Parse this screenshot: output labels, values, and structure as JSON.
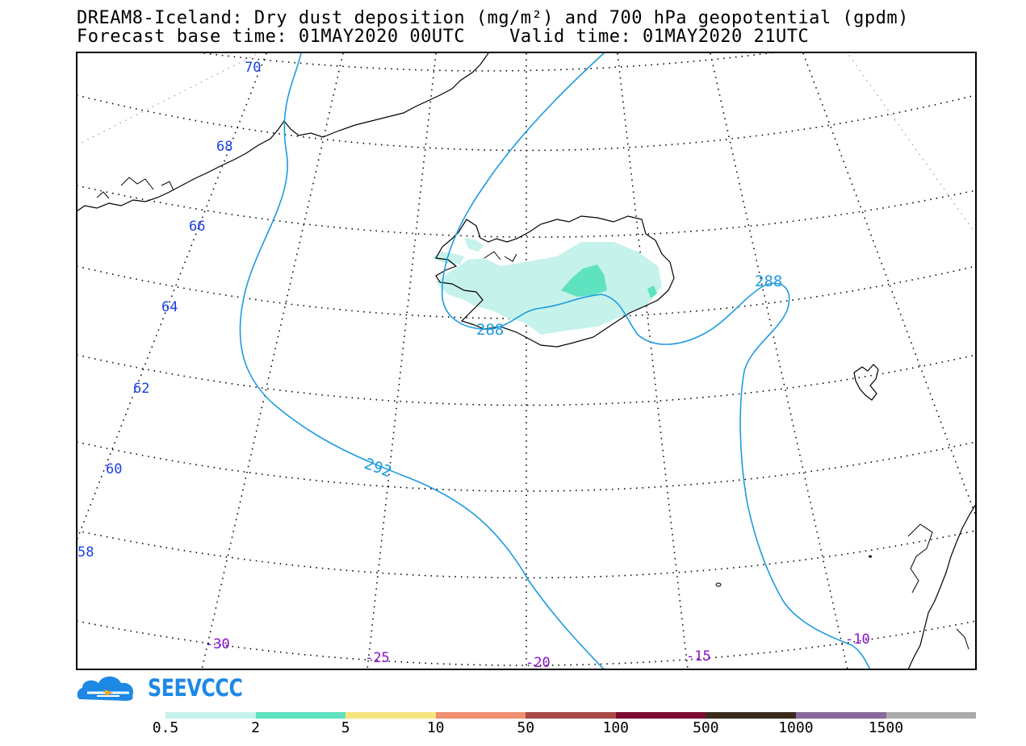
{
  "title": {
    "line1": "DREAM8-Iceland: Dry dust deposition (mg/m²) and 700 hPa geopotential (gpdm)",
    "line2_left": "Forecast base time: 01MAY2020 00UTC",
    "line2_right": "Valid time: 01MAY2020 21UTC"
  },
  "latitude_labels": [
    "70",
    "68",
    "66",
    "64",
    "62",
    "60",
    "58"
  ],
  "longitude_labels": [
    "-30",
    "-25",
    "-20",
    "-15",
    "-10"
  ],
  "contour_labels": [
    "292",
    "288",
    "288"
  ],
  "logo": {
    "text": "SEEVCCC",
    "icon": "cloud-logo-icon"
  },
  "colorbar": {
    "labels": [
      "0.5",
      "2",
      "5",
      "10",
      "50",
      "100",
      "500",
      "1000",
      "1500"
    ],
    "colors": [
      "#c5f2ea",
      "#5ee2c0",
      "#f7e47e",
      "#ef9070",
      "#a84a46",
      "#7c0a30",
      "#3a2a1a",
      "#8a6a9a",
      "#aaaaaa"
    ]
  },
  "colors": {
    "contour": "#1e9be0",
    "lat_label": "#1a40e8",
    "lon_label": "#8a10d0",
    "dust_light": "#c5f2ea",
    "dust_mid": "#5ee2c0"
  }
}
